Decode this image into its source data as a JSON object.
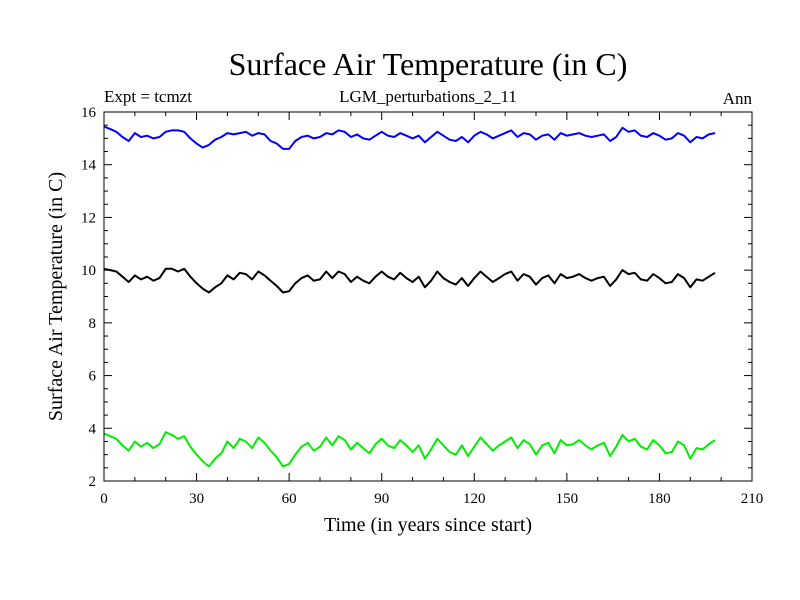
{
  "chart_data": {
    "type": "line",
    "title": "Surface Air Temperature (in C)",
    "subtitle_left": "Expt = tcmzt",
    "subtitle_center": "LGM_perturbations_2_11",
    "subtitle_right": "Ann",
    "xlabel": "Time (in years since start)",
    "ylabel": "Surface Air Temperature (in C)",
    "xlim": [
      0,
      210
    ],
    "ylim": [
      2,
      16
    ],
    "xticks": [
      0,
      30,
      60,
      90,
      120,
      150,
      180,
      210
    ],
    "yticks": [
      2,
      4,
      6,
      8,
      10,
      12,
      14,
      16
    ],
    "x": [
      0,
      2,
      4,
      6,
      8,
      10,
      12,
      14,
      16,
      18,
      20,
      22,
      24,
      26,
      28,
      30,
      32,
      34,
      36,
      38,
      40,
      42,
      44,
      46,
      48,
      50,
      52,
      54,
      56,
      58,
      60,
      62,
      64,
      66,
      68,
      70,
      72,
      74,
      76,
      78,
      80,
      82,
      84,
      86,
      88,
      90,
      92,
      94,
      96,
      98,
      100,
      102,
      104,
      106,
      108,
      110,
      112,
      114,
      116,
      118,
      120,
      122,
      124,
      126,
      128,
      130,
      132,
      134,
      136,
      138,
      140,
      142,
      144,
      146,
      148,
      150,
      152,
      154,
      156,
      158,
      160,
      162,
      164,
      166,
      168,
      170,
      172,
      174,
      176,
      178,
      180,
      182,
      184,
      186,
      188,
      190,
      192,
      194,
      196,
      198
    ],
    "series": [
      {
        "name": "blue",
        "color": "#0000ff",
        "values": [
          15.45,
          15.35,
          15.25,
          15.05,
          14.9,
          15.2,
          15.05,
          15.1,
          15.0,
          15.05,
          15.25,
          15.3,
          15.3,
          15.25,
          15.0,
          14.8,
          14.65,
          14.75,
          14.95,
          15.05,
          15.2,
          15.15,
          15.2,
          15.25,
          15.1,
          15.2,
          15.15,
          14.9,
          14.8,
          14.6,
          14.6,
          14.9,
          15.05,
          15.1,
          15.0,
          15.05,
          15.2,
          15.15,
          15.3,
          15.25,
          15.05,
          15.15,
          15.0,
          14.95,
          15.1,
          15.25,
          15.1,
          15.05,
          15.2,
          15.1,
          15.0,
          15.1,
          14.85,
          15.05,
          15.25,
          15.1,
          14.95,
          14.9,
          15.05,
          14.85,
          15.1,
          15.25,
          15.15,
          15.0,
          15.1,
          15.2,
          15.3,
          15.05,
          15.2,
          15.15,
          14.95,
          15.1,
          15.15,
          14.95,
          15.2,
          15.1,
          15.15,
          15.2,
          15.1,
          15.05,
          15.1,
          15.15,
          14.9,
          15.05,
          15.4,
          15.25,
          15.3,
          15.1,
          15.05,
          15.2,
          15.1,
          14.95,
          15.0,
          15.2,
          15.1,
          14.85,
          15.05,
          15.0,
          15.15,
          15.2
        ]
      },
      {
        "name": "black",
        "color": "#000000",
        "values": [
          10.05,
          10.0,
          9.95,
          9.75,
          9.55,
          9.8,
          9.65,
          9.75,
          9.6,
          9.7,
          10.05,
          10.05,
          9.95,
          10.05,
          9.75,
          9.5,
          9.3,
          9.15,
          9.35,
          9.5,
          9.8,
          9.65,
          9.9,
          9.85,
          9.65,
          9.95,
          9.8,
          9.6,
          9.4,
          9.15,
          9.2,
          9.5,
          9.7,
          9.8,
          9.6,
          9.65,
          9.95,
          9.7,
          9.95,
          9.85,
          9.55,
          9.75,
          9.6,
          9.5,
          9.75,
          9.95,
          9.75,
          9.65,
          9.9,
          9.7,
          9.55,
          9.75,
          9.35,
          9.6,
          9.95,
          9.7,
          9.55,
          9.45,
          9.7,
          9.4,
          9.7,
          9.95,
          9.75,
          9.55,
          9.7,
          9.85,
          9.95,
          9.6,
          9.85,
          9.75,
          9.45,
          9.7,
          9.8,
          9.5,
          9.85,
          9.7,
          9.75,
          9.85,
          9.7,
          9.6,
          9.7,
          9.75,
          9.4,
          9.65,
          10.0,
          9.85,
          9.9,
          9.65,
          9.6,
          9.85,
          9.7,
          9.5,
          9.55,
          9.85,
          9.7,
          9.35,
          9.65,
          9.6,
          9.75,
          9.9
        ]
      },
      {
        "name": "green",
        "color": "#00ee00",
        "values": [
          3.8,
          3.7,
          3.6,
          3.35,
          3.15,
          3.5,
          3.3,
          3.45,
          3.25,
          3.4,
          3.85,
          3.75,
          3.6,
          3.7,
          3.3,
          3.0,
          2.75,
          2.55,
          2.85,
          3.05,
          3.5,
          3.25,
          3.6,
          3.5,
          3.25,
          3.65,
          3.45,
          3.15,
          2.9,
          2.55,
          2.65,
          3.0,
          3.3,
          3.45,
          3.15,
          3.3,
          3.65,
          3.35,
          3.7,
          3.55,
          3.2,
          3.45,
          3.25,
          3.05,
          3.4,
          3.6,
          3.35,
          3.25,
          3.55,
          3.35,
          3.1,
          3.35,
          2.85,
          3.2,
          3.6,
          3.35,
          3.1,
          3.0,
          3.35,
          2.95,
          3.3,
          3.65,
          3.4,
          3.15,
          3.35,
          3.5,
          3.65,
          3.25,
          3.55,
          3.4,
          3.0,
          3.35,
          3.45,
          3.05,
          3.55,
          3.35,
          3.4,
          3.55,
          3.35,
          3.2,
          3.35,
          3.45,
          2.95,
          3.3,
          3.75,
          3.5,
          3.6,
          3.3,
          3.2,
          3.55,
          3.35,
          3.05,
          3.1,
          3.5,
          3.35,
          2.85,
          3.25,
          3.2,
          3.4,
          3.55
        ]
      }
    ]
  }
}
